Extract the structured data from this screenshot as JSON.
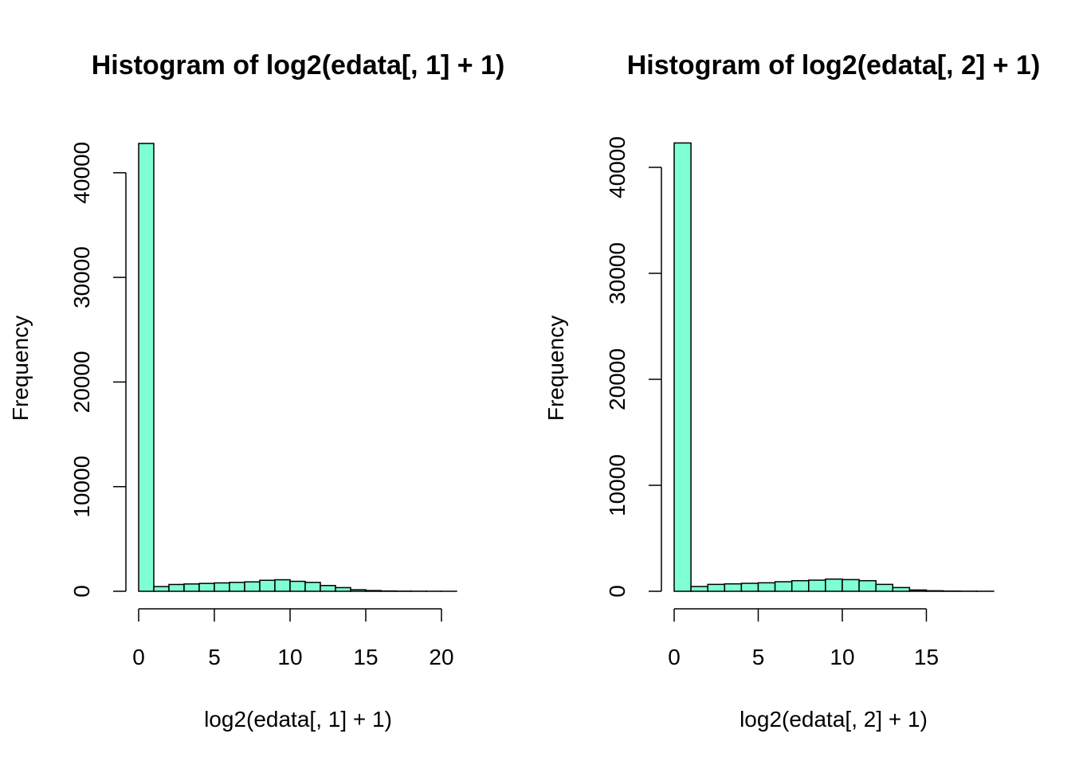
{
  "colors": {
    "bar_fill": "#7FFFD4",
    "bar_stroke": "#000000",
    "axis": "#000000"
  },
  "chart_data": [
    {
      "type": "bar",
      "title": "Histogram of log2(edata[, 1] + 1)",
      "xlabel": "log2(edata[, 1] + 1)",
      "ylabel": "Frequency",
      "bin_width": 1,
      "x": [
        0,
        1,
        2,
        3,
        4,
        5,
        6,
        7,
        8,
        9,
        10,
        11,
        12,
        13,
        14,
        15,
        16,
        17,
        18,
        19,
        20
      ],
      "values": [
        42800,
        450,
        650,
        700,
        750,
        800,
        850,
        900,
        1050,
        1100,
        950,
        850,
        550,
        350,
        150,
        70,
        30,
        15,
        8,
        4,
        2
      ],
      "xlim": [
        0,
        21
      ],
      "ylim": [
        0,
        42800
      ],
      "xticks": [
        "0",
        "5",
        "10",
        "15",
        "20"
      ],
      "yticks": [
        "0",
        "10000",
        "20000",
        "30000",
        "40000"
      ],
      "grid": false
    },
    {
      "type": "bar",
      "title": "Histogram of log2(edata[, 2] + 1)",
      "xlabel": "log2(edata[, 2] + 1)",
      "ylabel": "Frequency",
      "bin_width": 1,
      "x": [
        0,
        1,
        2,
        3,
        4,
        5,
        6,
        7,
        8,
        9,
        10,
        11,
        12,
        13,
        14,
        15,
        16,
        17,
        18
      ],
      "values": [
        42300,
        450,
        650,
        700,
        750,
        800,
        900,
        1000,
        1050,
        1150,
        1100,
        1000,
        650,
        350,
        120,
        50,
        20,
        10,
        5
      ],
      "xlim": [
        0,
        19
      ],
      "ylim": [
        0,
        42300
      ],
      "xticks": [
        "0",
        "5",
        "10",
        "15"
      ],
      "yticks": [
        "0",
        "10000",
        "20000",
        "30000",
        "40000"
      ],
      "grid": false
    }
  ]
}
